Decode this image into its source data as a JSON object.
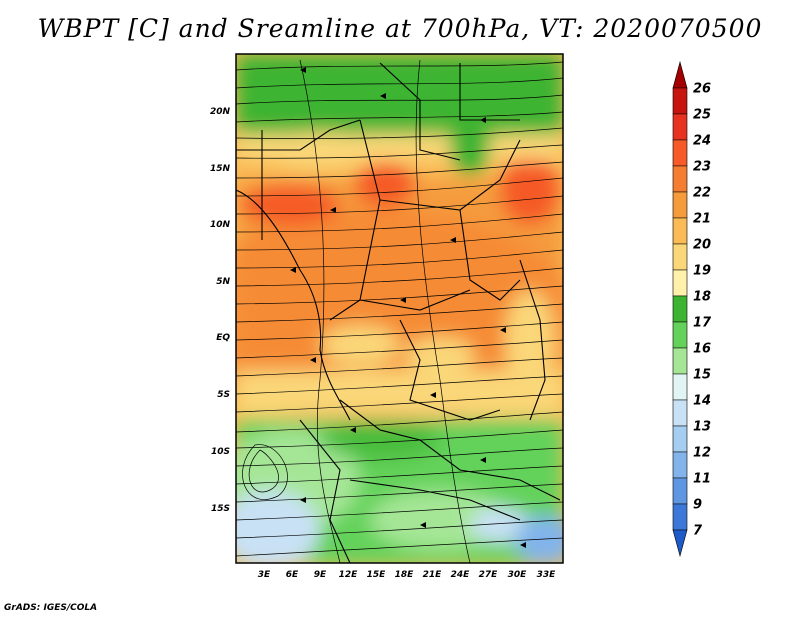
{
  "title": "WBPT [C] and Sreamline at 700hPa, VT: 2020070500",
  "credit": "GrADS: IGES/COLA",
  "map": {
    "variable": "Wet-bulb potential temperature",
    "units": "C",
    "level": "700hPa",
    "valid_time": "2020070500",
    "lon_range": [
      0,
      35
    ],
    "lat_range": [
      -20,
      24
    ],
    "x_ticks": [
      "3E",
      "6E",
      "9E",
      "12E",
      "15E",
      "18E",
      "21E",
      "24E",
      "27E",
      "30E",
      "33E"
    ],
    "y_ticks": [
      "20N",
      "15N",
      "10N",
      "5N",
      "EQ",
      "5S",
      "10S",
      "15S"
    ],
    "overlay": "streamlines"
  },
  "colorbar": {
    "labels": [
      "26",
      "25",
      "24",
      "23",
      "22",
      "21",
      "20",
      "19",
      "18",
      "17",
      "16",
      "15",
      "14",
      "13",
      "12",
      "11",
      "9",
      "7"
    ],
    "colors": [
      "#a50000",
      "#c8140f",
      "#e6321e",
      "#f55a28",
      "#f57d32",
      "#f59b3c",
      "#faba55",
      "#fad778",
      "#fff0aa",
      "#3cb432",
      "#64d25a",
      "#a5e696",
      "#e1f5f5",
      "#c8e1f5",
      "#a5cdf0",
      "#82b4eb",
      "#5f96e1",
      "#3c78d7",
      "#1e5ac8"
    ]
  }
}
